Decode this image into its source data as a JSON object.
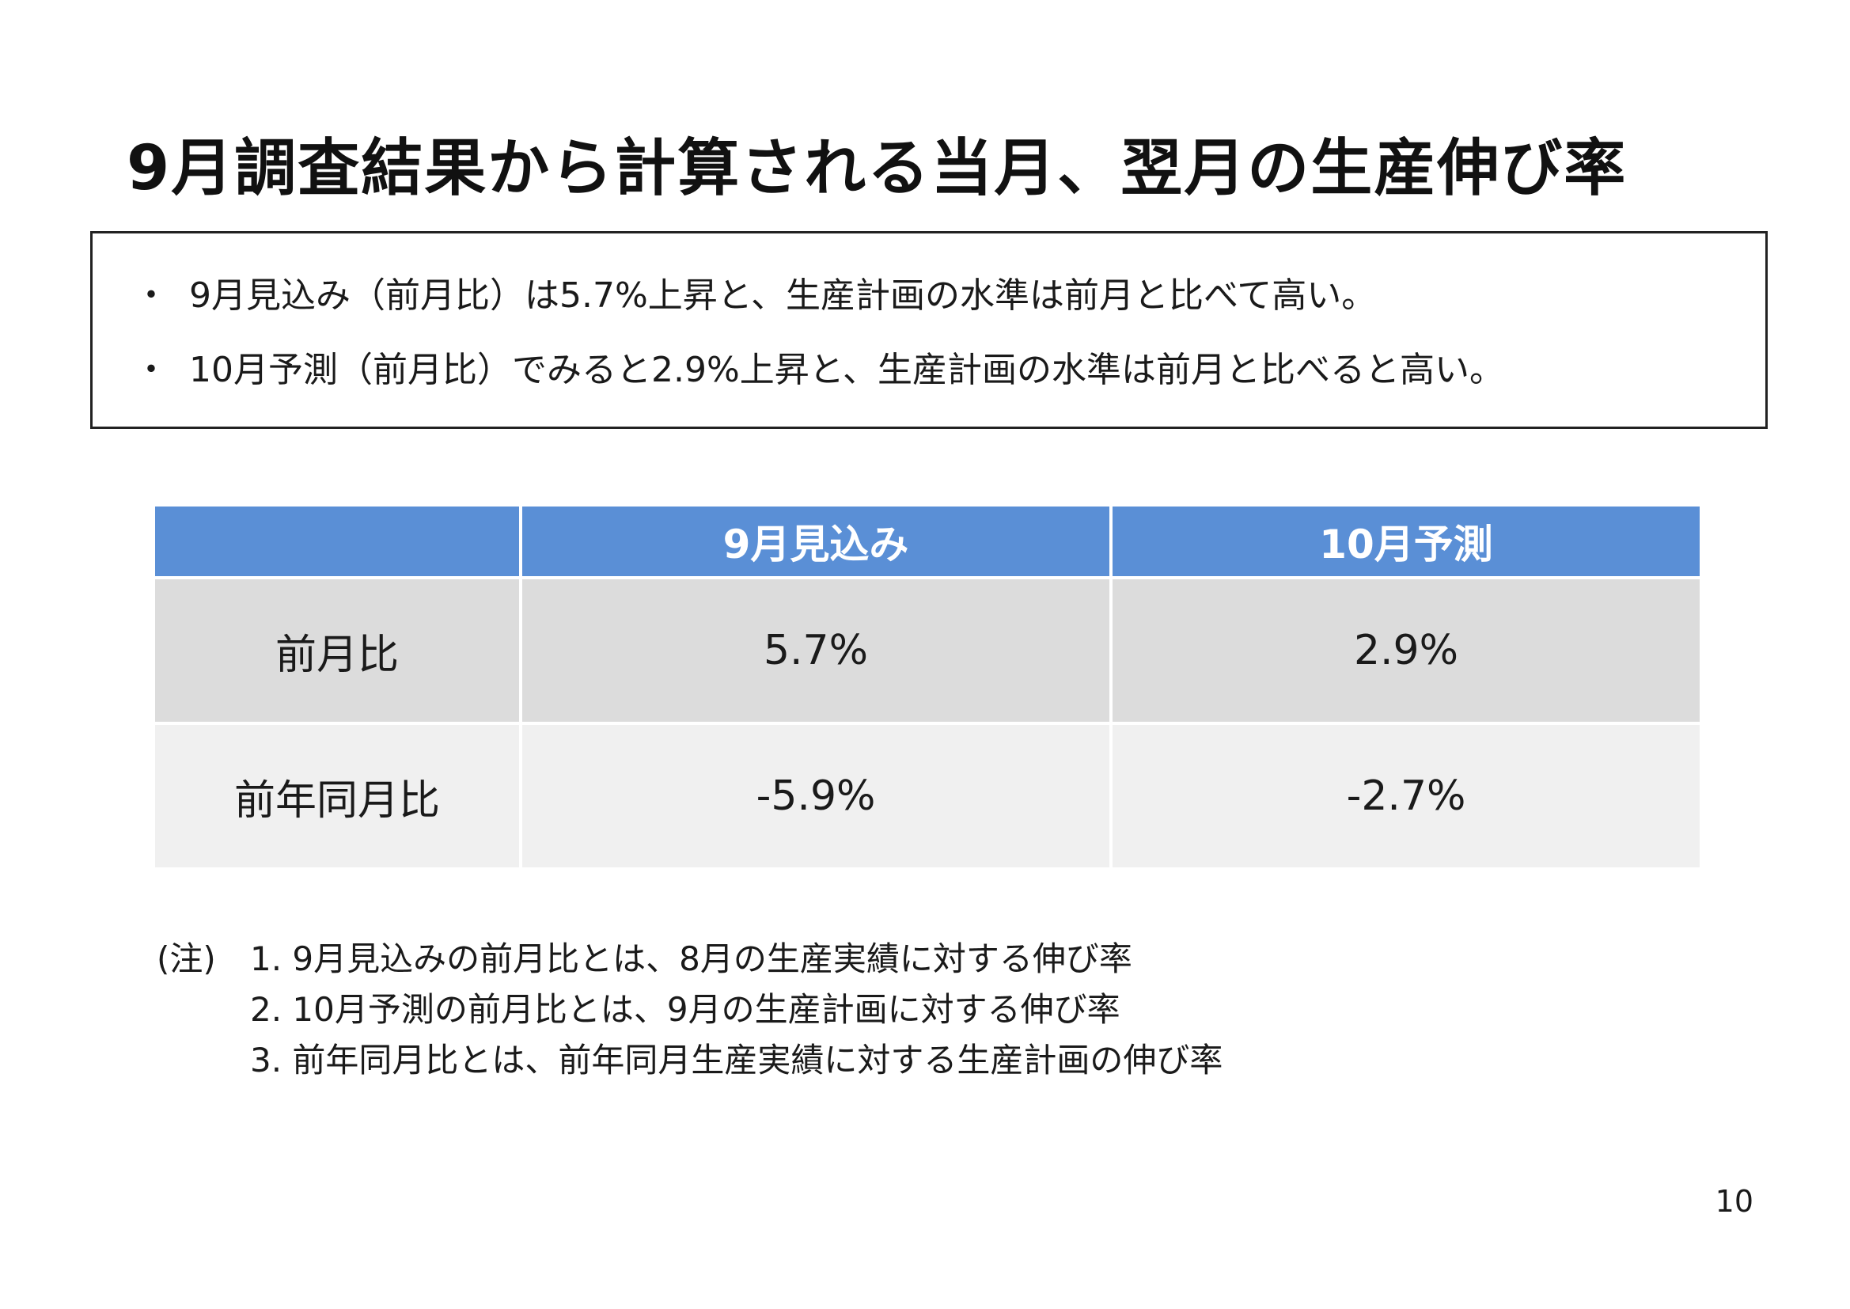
{
  "title": "9月調査結果から計算される当月、翌月の生産伸び率",
  "summary": {
    "bullet_symbol": "・",
    "items": [
      "9月見込み（前月比）は5.7%上昇と、生産計画の水準は前月と比べて高い。",
      "10月予測（前月比）でみると2.9%上昇と、生産計画の水準は前月と比べると高い。"
    ]
  },
  "table": {
    "headers": [
      "",
      "9月見込み",
      "10月予測"
    ],
    "rows": [
      {
        "label": "前月比",
        "values": [
          "5.7%",
          "2.9%"
        ]
      },
      {
        "label": "前年同月比",
        "values": [
          "-5.9%",
          "-2.7%"
        ]
      }
    ]
  },
  "notes": {
    "prefix": "(注)",
    "items": [
      "1. 9月見込みの前月比とは、8月の生産実績に対する伸び率",
      "2. 10月予測の前月比とは、9月の生産計画に対する伸び率",
      "3. 前年同月比とは、前年同月生産実績に対する生産計画の伸び率"
    ]
  },
  "page_number": "10",
  "colors": {
    "header_bg": "#5a8fd6",
    "row1_bg": "#dcdcdc",
    "row2_bg": "#f0f0f0"
  }
}
